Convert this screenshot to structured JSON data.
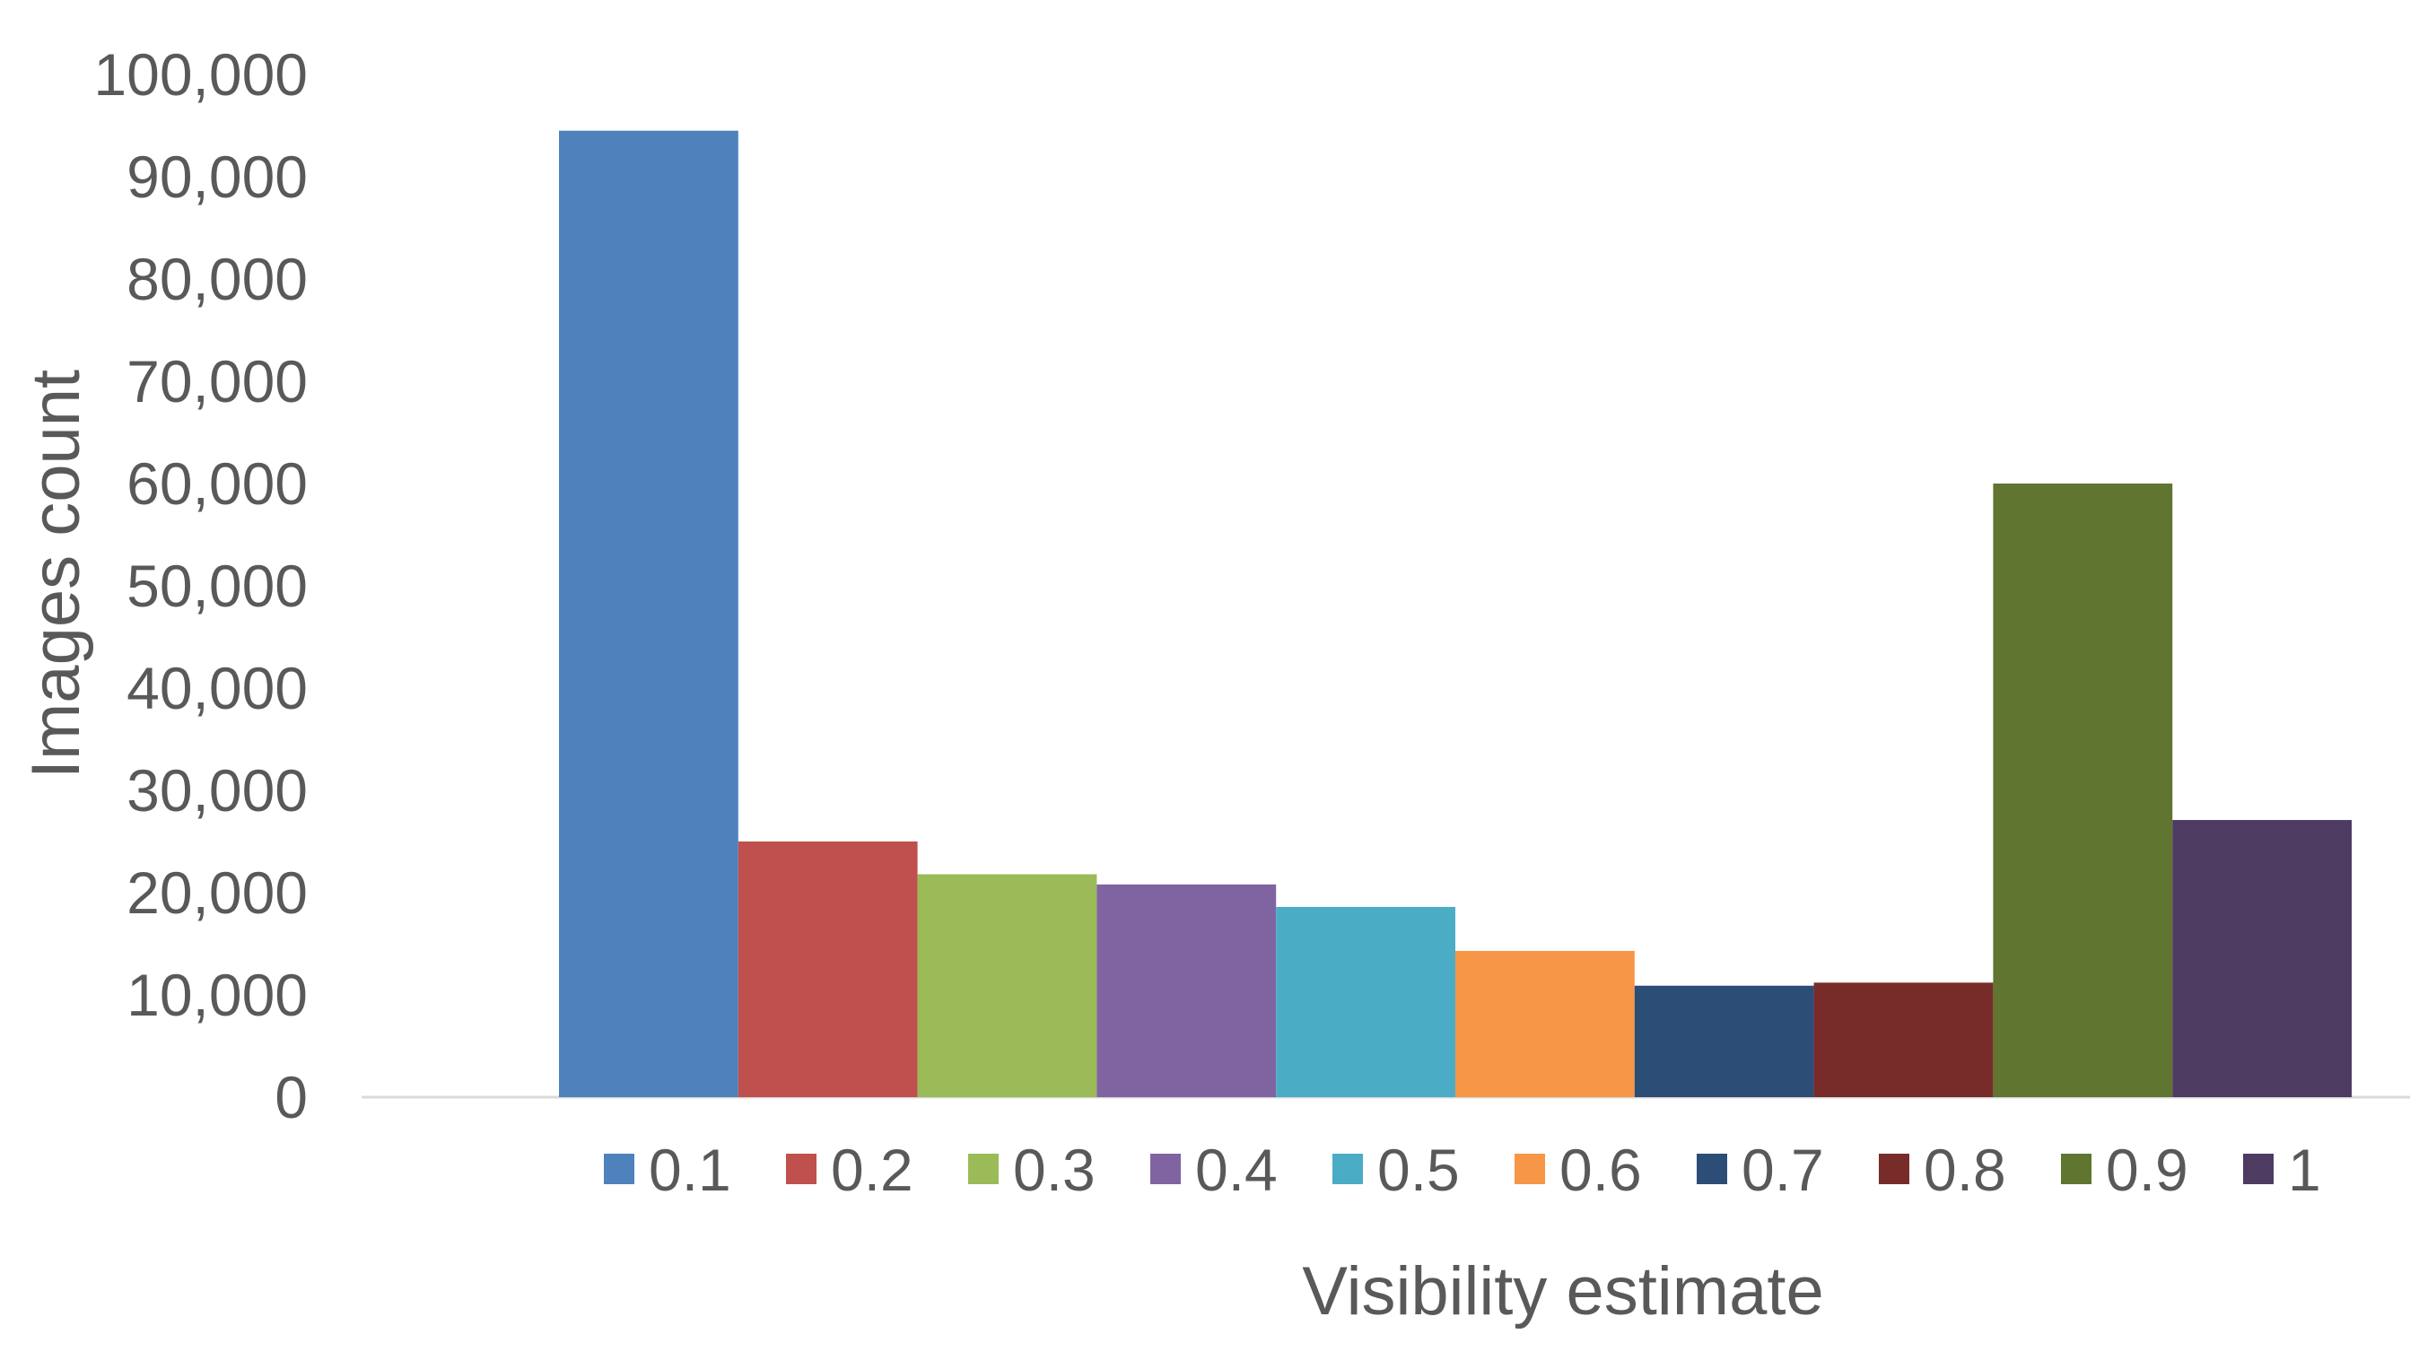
{
  "chart_data": {
    "type": "bar",
    "xlabel": "Visibility estimate",
    "ylabel": "Images count",
    "ylim": [
      0,
      100000
    ],
    "yticks": [
      "0",
      "10,000",
      "20,000",
      "30,000",
      "40,000",
      "50,000",
      "60,000",
      "70,000",
      "80,000",
      "90,000",
      "100,000"
    ],
    "grid": false,
    "legend_position": "bottom",
    "series": [
      {
        "name": "0.1",
        "value": 94500,
        "color": "#4F81BD"
      },
      {
        "name": "0.2",
        "value": 25000,
        "color": "#C0504D"
      },
      {
        "name": "0.3",
        "value": 21800,
        "color": "#9BBB59"
      },
      {
        "name": "0.4",
        "value": 20800,
        "color": "#8064A2"
      },
      {
        "name": "0.5",
        "value": 18600,
        "color": "#4BACC6"
      },
      {
        "name": "0.6",
        "value": 14300,
        "color": "#F79646"
      },
      {
        "name": "0.7",
        "value": 10900,
        "color": "#2C4D75"
      },
      {
        "name": "0.8",
        "value": 11200,
        "color": "#772C2A"
      },
      {
        "name": "0.9",
        "value": 60000,
        "color": "#5F7530"
      },
      {
        "name": "1",
        "value": 27100,
        "color": "#4D3B62"
      }
    ]
  }
}
